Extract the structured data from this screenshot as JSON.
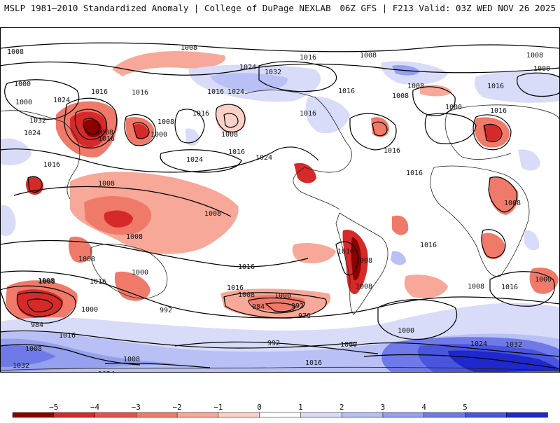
{
  "header": {
    "title_left": "MSLP 1981–2010 Standardized Anomaly | College of DuPage NEXLAB",
    "title_right": "06Z GFS | F213 Valid: 03Z WED NOV 26 2025"
  },
  "colorbar": {
    "ticks": [
      "−5",
      "−4",
      "−3",
      "−2",
      "−1",
      "0",
      "1",
      "2",
      "3",
      "4",
      "5"
    ],
    "colors": [
      "#8c0000",
      "#d62a2a",
      "#e85050",
      "#f07a6a",
      "#f7a898",
      "#fcd2c8",
      "#ffffff",
      "#d8dcf8",
      "#b8c0f5",
      "#95a0ee",
      "#6f7ae8",
      "#4a55de",
      "#1f28cc"
    ]
  },
  "map": {
    "isobar_labels": [
      "1008",
      "1008",
      "1016",
      "1008",
      "1008",
      "1000",
      "1024",
      "1032",
      "1016",
      "1016",
      "1024",
      "1016",
      "1016",
      "1008",
      "1000",
      "1016",
      "1000",
      "1008",
      "1024",
      "1016",
      "1016",
      "1032",
      "1024",
      "1008",
      "1016",
      "1008",
      "1000",
      "1016",
      "1024",
      "1016",
      "1024",
      "1016",
      "1016",
      "1000",
      "1008",
      "1008",
      "1016",
      "1008",
      "1008",
      "1008",
      "1016",
      "1008",
      "1016",
      "1016",
      "1000",
      "1008",
      "1000",
      "1016",
      "992",
      "1008",
      "984",
      "992",
      "976",
      "1000",
      "1016",
      "1008",
      "1008",
      "984",
      "1000",
      "1016",
      "1008",
      "1008",
      "992",
      "1000",
      "1024",
      "1008",
      "1016",
      "1032",
      "1024",
      "1008",
      "1016",
      "1032",
      "1000"
    ]
  }
}
